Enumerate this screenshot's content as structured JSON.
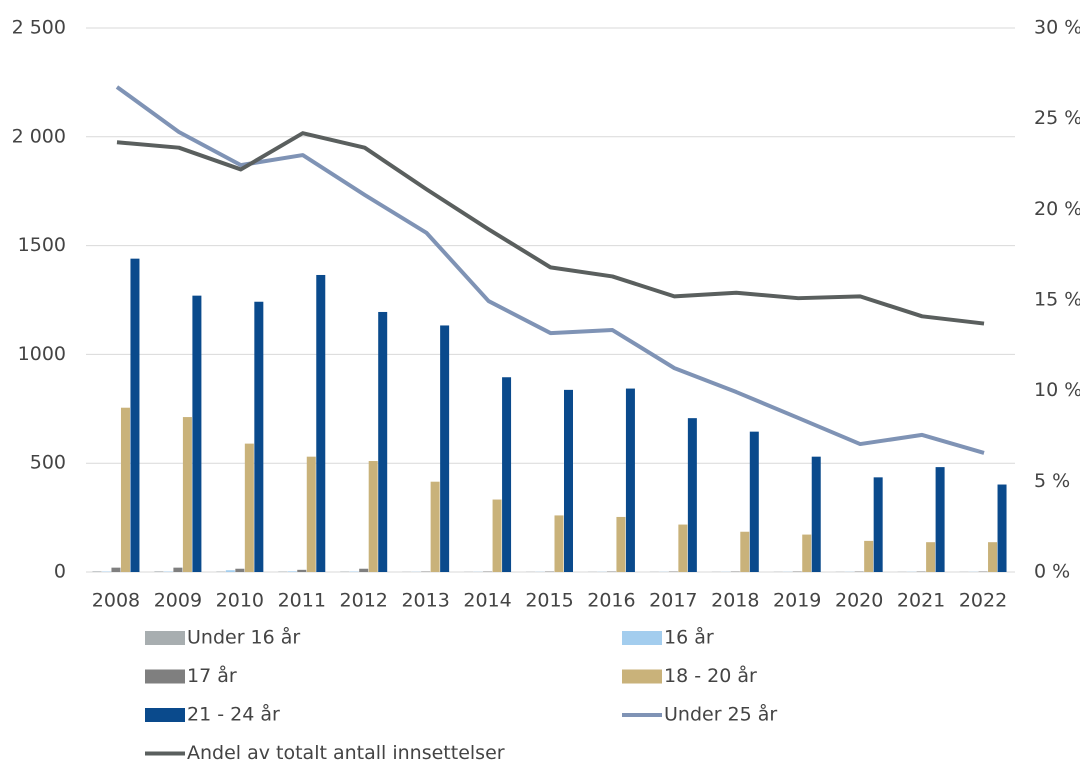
{
  "chart_data": {
    "type": "combo",
    "categories": [
      "2008",
      "2009",
      "2010",
      "2011",
      "2012",
      "2013",
      "2014",
      "2015",
      "2016",
      "2017",
      "2018",
      "2019",
      "2020",
      "2021",
      "2022"
    ],
    "ylim": [
      0,
      2500
    ],
    "yticks": [
      0,
      500,
      1000,
      1500,
      {
        "value": 2000,
        "label": "2 000"
      },
      {
        "value": 2500,
        "label": "2 500"
      }
    ],
    "y2lim": [
      0,
      30
    ],
    "y2ticks": [
      {
        "value": 0,
        "label": "0 %"
      },
      {
        "value": 5,
        "label": "5 %"
      },
      {
        "value": 10,
        "label": "10 %"
      },
      {
        "value": 15,
        "label": "15 %"
      },
      {
        "value": 20,
        "label": "20 %"
      },
      {
        "value": 25,
        "label": "25 %"
      },
      {
        "value": 30,
        "label": "30 %"
      }
    ],
    "grid": true,
    "legend": "bottom",
    "series": [
      {
        "name": "Under 16 år",
        "type": "bar",
        "color": "#a8aeb0",
        "values": [
          3,
          3,
          2,
          2,
          2,
          1,
          1,
          1,
          1,
          1,
          1,
          1,
          1,
          1,
          1
        ]
      },
      {
        "name": "16 år",
        "type": "bar",
        "color": "#a3cdee",
        "values": [
          2,
          2,
          8,
          3,
          2,
          1,
          1,
          1,
          1,
          1,
          1,
          1,
          1,
          1,
          1
        ]
      },
      {
        "name": "17 år",
        "type": "bar",
        "color": "#7f7f7f",
        "values": [
          20,
          20,
          15,
          10,
          15,
          2,
          2,
          2,
          2,
          2,
          2,
          2,
          2,
          2,
          2
        ]
      },
      {
        "name": "18 - 20 år",
        "type": "bar",
        "color": "#c9b27a",
        "values": [
          755,
          712,
          590,
          530,
          510,
          415,
          333,
          260,
          253,
          218,
          185,
          172,
          143,
          137,
          137
        ]
      },
      {
        "name": "21 - 24 år",
        "type": "bar",
        "color": "#0a4a8c",
        "values": [
          1440,
          1270,
          1242,
          1365,
          1195,
          1133,
          895,
          837,
          843,
          707,
          645,
          530,
          435,
          482,
          402
        ]
      },
      {
        "name": "Under 25 år",
        "type": "line",
        "color": "#7f93b5",
        "values": [
          2229,
          2022,
          1870,
          1916,
          1733,
          1558,
          1245,
          1098,
          1112,
          937,
          827,
          708,
          588,
          630,
          547
        ]
      },
      {
        "name": "Andel av totalt antall innsettelser",
        "type": "line",
        "axis": "y2",
        "color": "#5a5f5e",
        "values": [
          23.7,
          23.4,
          22.2,
          24.2,
          23.4,
          21.1,
          18.9,
          16.8,
          16.3,
          15.2,
          15.4,
          15.1,
          15.2,
          14.1,
          13.7
        ]
      }
    ]
  }
}
